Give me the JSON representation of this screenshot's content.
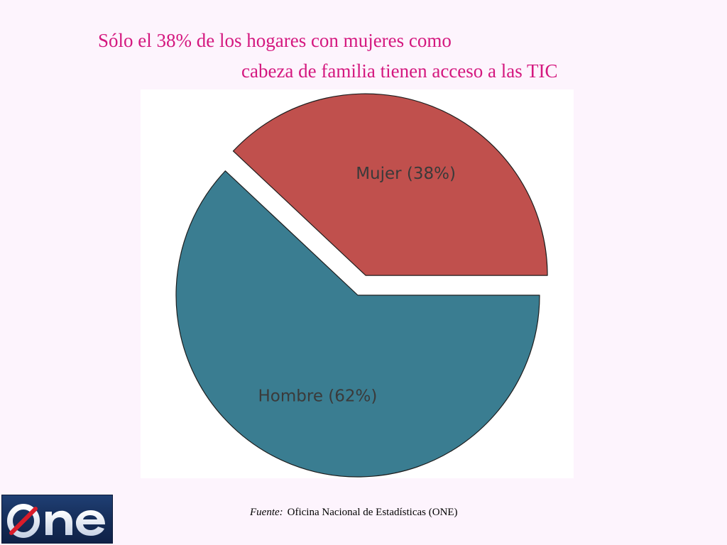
{
  "title": {
    "line1": "Sólo el 38% de los hogares con mujeres como",
    "line2": "cabeza de familia tienen acceso a las TIC"
  },
  "chart_data": {
    "type": "pie",
    "slices": [
      {
        "label": "Mujer (38%)",
        "category": "Mujer",
        "value": 38,
        "color": "#c0504d",
        "exploded": true
      },
      {
        "label": "Hombre (62%)",
        "category": "Hombre",
        "value": 62,
        "color": "#3a7d91",
        "exploded": false
      }
    ]
  },
  "logo": {
    "text": "ONE"
  },
  "source": {
    "label": "Fuente:",
    "text": "Oficina Nacional de Estadísticas (ONE)"
  },
  "colors": {
    "title": "#d4187f",
    "background": "#fdf4fd",
    "logo_background": "#1a3566"
  }
}
